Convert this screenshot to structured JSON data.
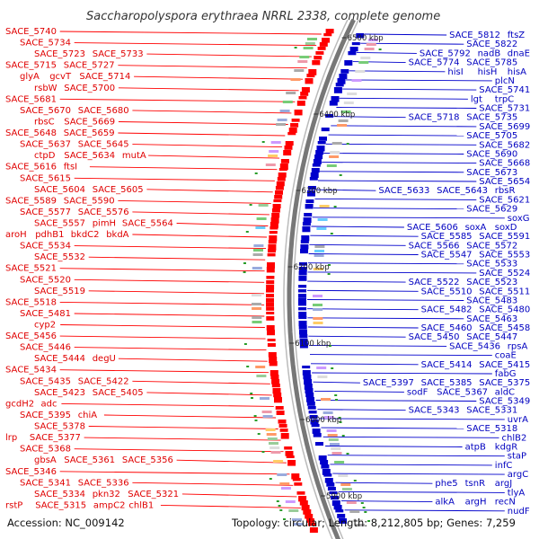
{
  "title": "Saccharopolyspora erythraea NRRL 2338, complete genome",
  "accession": "Accession: NC_009142",
  "topology": "Topology: circular; Length: 8,212,805 bp; Genes: 7,259",
  "colors": {
    "forward": "#ff0000",
    "reverse": "#0000cc",
    "backbone": "#777777",
    "gc": "#2a9d2a"
  },
  "kbp_markers": [
    "6500 kbp",
    "6400 kbp",
    "6300 kbp",
    "6200 kbp",
    "6100 kbp",
    "6000 kbp",
    "5900 kbp"
  ],
  "left_labels": [
    [
      "SACE_5740"
    ],
    [
      "SACE_5734"
    ],
    [
      "SACE_5723",
      "SACE_5733"
    ],
    [
      "SACE_5715",
      "SACE_5727"
    ],
    [
      "glyA",
      "gcvT",
      "SACE_5714"
    ],
    [
      "rsbW",
      "SACE_5700"
    ],
    [
      "SACE_5681"
    ],
    [
      "SACE_5670",
      "SACE_5680"
    ],
    [
      "rbsC",
      "SACE_5669"
    ],
    [
      "SACE_5648",
      "SACE_5659"
    ],
    [
      "SACE_5637",
      "SACE_5645"
    ],
    [
      "ctpD",
      "SACE_5634",
      "mutA"
    ],
    [
      "SACE_5616",
      "ftsI"
    ],
    [
      "SACE_5615"
    ],
    [
      "SACE_5604",
      "SACE_5605"
    ],
    [
      "SACE_5589",
      "SACE_5590"
    ],
    [
      "SACE_5577",
      "SACE_5576"
    ],
    [
      "SACE_5557",
      "pimH",
      "SACE_5564"
    ],
    [
      "aroH",
      "pdhB1",
      "bkdC2",
      "bkdA"
    ],
    [
      "SACE_5534"
    ],
    [
      "SACE_5532"
    ],
    [
      "SACE_5521"
    ],
    [
      "SACE_5520"
    ],
    [
      "SACE_5519"
    ],
    [
      "SACE_5518"
    ],
    [
      "SACE_5481"
    ],
    [
      "cyp2"
    ],
    [
      "SACE_5456"
    ],
    [
      "SACE_5446"
    ],
    [
      "SACE_5444",
      "degU"
    ],
    [
      "SACE_5434"
    ],
    [
      "SACE_5435",
      "SACE_5422"
    ],
    [
      "SACE_5423",
      "SACE_5405"
    ],
    [
      "gcdH2",
      "adc"
    ],
    [
      "SACE_5395",
      "chiA"
    ],
    [
      "SACE_5378"
    ],
    [
      "lrp",
      "SACE_5377"
    ],
    [
      "SACE_5368"
    ],
    [
      "gbsA",
      "SACE_5361",
      "SACE_5356"
    ],
    [
      "SACE_5346"
    ],
    [
      "SACE_5341",
      "SACE_5336"
    ],
    [
      "SACE_5334",
      "pkn32",
      "SACE_5321"
    ],
    [
      "rstP",
      "SACE_5315",
      "ampC2",
      "chlB1"
    ]
  ],
  "right_labels": [
    [
      "SACE_5812",
      "ftsZ"
    ],
    [
      "SACE_5822"
    ],
    [
      "SACE_5792",
      "nadB",
      "dnaE"
    ],
    [
      "SACE_5774",
      "SACE_5785"
    ],
    [
      "hisI",
      "hisH",
      "hisA"
    ],
    [
      "plcN"
    ],
    [
      "SACE_5741"
    ],
    [
      "lgt",
      "trpC"
    ],
    [
      "SACE_5731"
    ],
    [
      "SACE_5718",
      "SACE_5735"
    ],
    [
      "SACE_5699"
    ],
    [
      "SACE_5705"
    ],
    [
      "SACE_5682"
    ],
    [
      "SACE_5690"
    ],
    [
      "SACE_5668"
    ],
    [
      "SACE_5673"
    ],
    [
      "SACE_5654"
    ],
    [
      "SACE_5633",
      "SACE_5643",
      "rbsR"
    ],
    [
      "SACE_5621"
    ],
    [
      "SACE_5629"
    ],
    [
      "soxG"
    ],
    [
      "SACE_5606",
      "soxA",
      "soxD"
    ],
    [
      "SACE_5585",
      "SACE_5591"
    ],
    [
      "SACE_5566",
      "SACE_5572"
    ],
    [
      "SACE_5547",
      "SACE_5553"
    ],
    [
      "SACE_5533"
    ],
    [
      "SACE_5524"
    ],
    [
      "SACE_5522",
      "SACE_5523"
    ],
    [
      "SACE_5510",
      "SACE_5511"
    ],
    [
      "SACE_5483"
    ],
    [
      "SACE_5482",
      "SACE_5480"
    ],
    [
      "SACE_5463"
    ],
    [
      "SACE_5460",
      "SACE_5458"
    ],
    [
      "SACE_5450",
      "SACE_5447"
    ],
    [
      "SACE_5436",
      "rpsA"
    ],
    [
      "coaE"
    ],
    [
      "SACE_5414",
      "SACE_5415"
    ],
    [
      "fabG"
    ],
    [
      "SACE_5397",
      "SACE_5385",
      "SACE_5375"
    ],
    [
      "sodF",
      "SACE_5367",
      "aldC"
    ],
    [
      "SACE_5349"
    ],
    [
      "SACE_5343",
      "SACE_5331"
    ],
    [
      "uvrA"
    ],
    [
      "SACE_5318"
    ],
    [
      "chlB2"
    ],
    [
      "atpB",
      "kdgR"
    ],
    [
      "staP"
    ],
    [
      "infC"
    ],
    [
      "argC"
    ],
    [
      "phe5",
      "tsnR",
      "argJ"
    ],
    [
      "tlyA"
    ],
    [
      "alkA",
      "argH",
      "recN"
    ],
    [
      "nudF"
    ]
  ]
}
